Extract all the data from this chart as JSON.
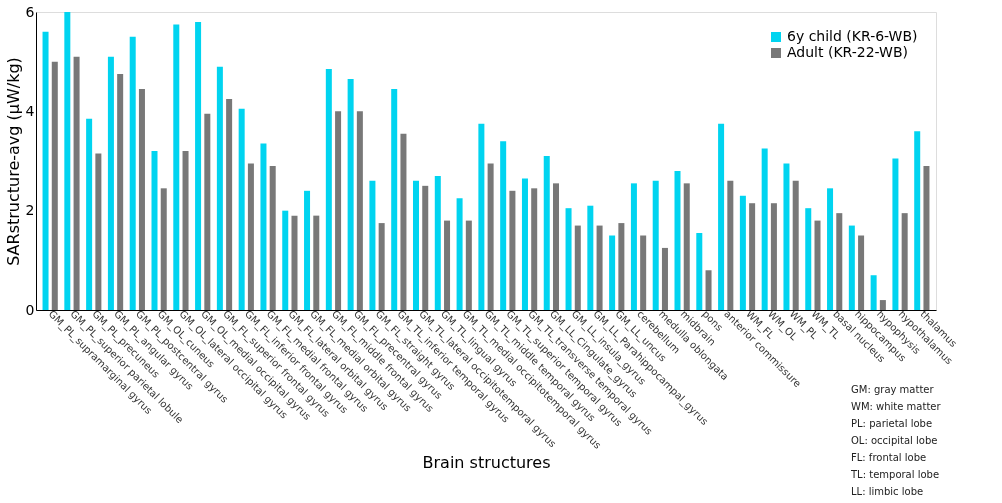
{
  "chart_data": {
    "type": "bar",
    "xlabel": "Brain structures",
    "ylabel": "SARstructure-avg (μW/kg)",
    "categories": [
      "GM_PL_supramarginal gyrus",
      "GM_PL_superior parietal lobule",
      "GM_PL_precuneus",
      "GM_PL_angular gyrus",
      "GM_PL_postcentral gyrus",
      "GM_OL_cuneus",
      "GM_OL_lateral occipital gyrus",
      "GM_OL_medial occipital gyrus",
      "GM_FL_superior frontal gyrus",
      "GM_FL_inferior frontal gyrus",
      "GM_FL_medial frontal gyrus",
      "GM_FL_lateral orbital gyrus",
      "GM_FL_medial orbital gyrus",
      "GM_FL_middle frontal gyrus",
      "GM_FL_precentral gyrus",
      "GM_FL_straight gyrus",
      "GM_TL_inferior temporal gyrus",
      "GM_TL_lateral occipitotemporal gyrus",
      "GM_TL_lingual gyrus",
      "GM_TL_medial occipitotemporal gyrus",
      "GM_TL_middle temporal gyrus",
      "GM_TL_superior temporal gyrus",
      "GM_TL_transverse temporal gyrus",
      "GM_LL_Cingulate_gyrus",
      "GM_LL_insula_gyrus",
      "GM_LL_Parahippocampal_gyrus",
      "GM_LL_uncus",
      "cerebellum",
      "medulla oblongata",
      "midbrain",
      "pons",
      "anterior commissure",
      "WM_FL",
      "WM_OL",
      "WM_PL",
      "WM_TL",
      "basal nucleus",
      "hippocampus",
      "hypophysis",
      "hypothalamus",
      "thalamus"
    ],
    "series": [
      {
        "name": "6y child (KR-6-WB)",
        "color": "#00d4f0",
        "values": [
          5.6,
          6.0,
          3.85,
          5.1,
          5.5,
          3.2,
          5.75,
          5.8,
          4.9,
          4.05,
          3.35,
          2.0,
          2.4,
          4.85,
          4.65,
          2.6,
          4.45,
          2.6,
          2.7,
          2.25,
          3.75,
          3.4,
          2.65,
          3.1,
          2.05,
          2.1,
          1.5,
          2.55,
          2.6,
          2.8,
          1.55,
          3.75,
          2.3,
          3.25,
          2.95,
          2.05,
          2.45,
          1.7,
          0.7,
          3.05,
          3.6
        ]
      },
      {
        "name": "Adult (KR-22-WB)",
        "color": "#787878",
        "values": [
          5.0,
          5.1,
          3.15,
          4.75,
          4.45,
          2.45,
          3.2,
          3.95,
          4.25,
          2.95,
          2.9,
          1.9,
          1.9,
          4.0,
          4.0,
          1.75,
          3.55,
          2.5,
          1.8,
          1.8,
          2.95,
          2.4,
          2.45,
          2.55,
          1.7,
          1.7,
          1.75,
          1.5,
          1.25,
          2.55,
          0.8,
          2.6,
          2.15,
          2.15,
          2.6,
          1.8,
          1.95,
          1.5,
          0.2,
          1.95,
          2.9
        ]
      }
    ],
    "ylim": [
      0,
      6
    ],
    "yticks": [
      0,
      2,
      4,
      6
    ],
    "grid": false,
    "legend": "top right",
    "annotations": [
      "GM: gray matter",
      "WM: white matter",
      "PL: parietal lobe",
      "OL: occipital lobe",
      "FL: frontal lobe",
      "TL: temporal lobe",
      "LL: limbic lobe"
    ]
  }
}
